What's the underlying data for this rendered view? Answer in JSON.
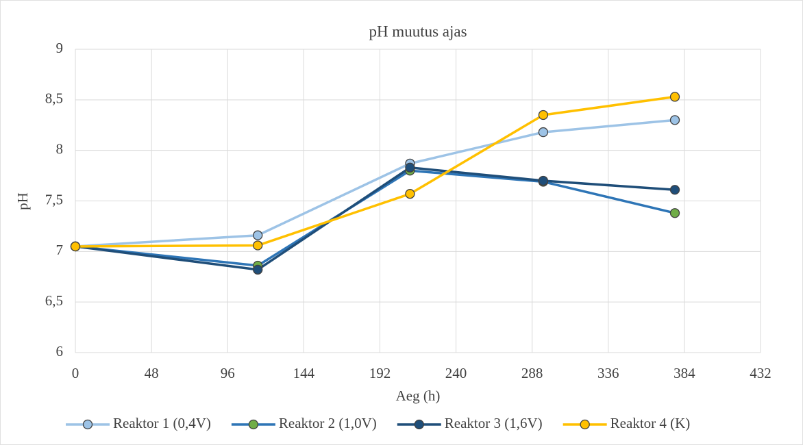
{
  "chart_data": {
    "type": "line",
    "title": "pH muutus ajas",
    "x_label": "Aeg (h)",
    "y_label": "pH",
    "x": [
      0,
      115,
      211,
      295,
      378
    ],
    "series": [
      {
        "name": "Reaktor 1 (0,4V)",
        "color": "#9dc3e6",
        "marker_color": "#9dc3e6",
        "values": [
          7.05,
          7.16,
          7.87,
          8.18,
          8.3
        ]
      },
      {
        "name": "Reaktor 2 (1,0V)",
        "color": "#2e75b6",
        "marker_color": "#70ad47",
        "values": [
          7.05,
          6.86,
          7.8,
          7.69,
          7.38
        ]
      },
      {
        "name": "Reaktor 3 (1,6V)",
        "color": "#1f4e79",
        "marker_color": "#1f4e79",
        "values": [
          7.05,
          6.82,
          7.83,
          7.7,
          7.61
        ]
      },
      {
        "name": "Reaktor 4 (K)",
        "color": "#ffc000",
        "marker_color": "#ffc000",
        "values": [
          7.05,
          7.06,
          7.57,
          8.35,
          8.53
        ]
      }
    ],
    "xlim": [
      0,
      432
    ],
    "xticks": [
      0,
      48,
      96,
      144,
      192,
      240,
      288,
      336,
      384,
      432
    ],
    "ylim": [
      6,
      9
    ],
    "yticks": [
      6,
      {
        "value": 6.5,
        "label": "6,5"
      },
      7,
      {
        "value": 7.5,
        "label": "7,5"
      },
      8,
      {
        "value": 8.5,
        "label": "8,5"
      },
      9
    ],
    "grid": true,
    "legend": "bottom"
  }
}
